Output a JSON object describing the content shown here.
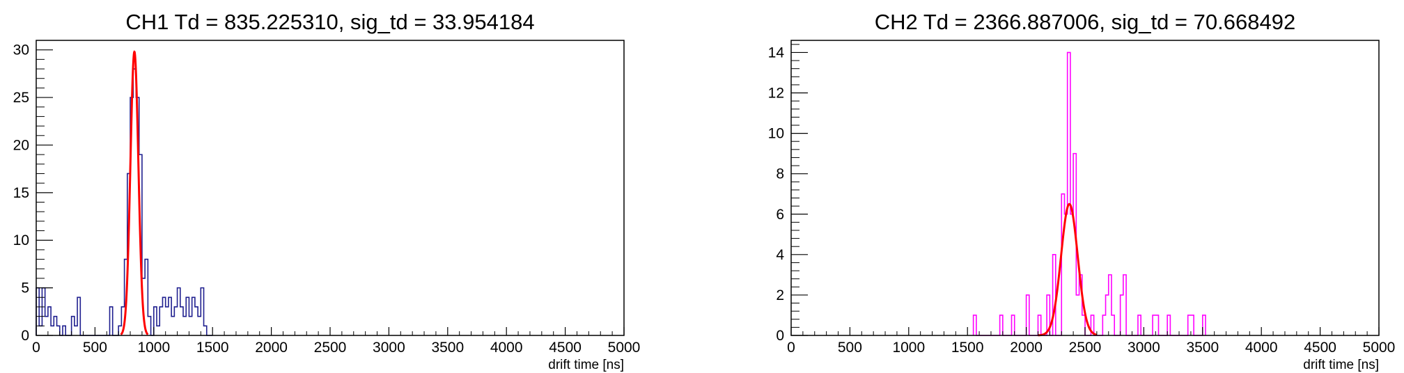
{
  "chart_data": [
    {
      "type": "histogram",
      "title": "CH1 Td = 835.225310, sig_td = 33.954184",
      "xlabel": "drift time [ns]",
      "ylabel": "",
      "xlim": [
        0,
        5000
      ],
      "ylim": [
        0,
        31
      ],
      "bin_width": 25,
      "x_ticks": [
        0,
        500,
        1000,
        1500,
        2000,
        2500,
        3000,
        3500,
        4000,
        4500,
        5000
      ],
      "y_ticks": [
        0,
        5,
        10,
        15,
        20,
        25,
        30
      ],
      "histogram_color": "#1f1f8f",
      "bins": [
        {
          "x": 0,
          "y": 5
        },
        {
          "x": 25,
          "y": 1
        },
        {
          "x": 50,
          "y": 5
        },
        {
          "x": 75,
          "y": 2
        },
        {
          "x": 100,
          "y": 3
        },
        {
          "x": 125,
          "y": 1
        },
        {
          "x": 150,
          "y": 2
        },
        {
          "x": 175,
          "y": 1
        },
        {
          "x": 200,
          "y": 0
        },
        {
          "x": 225,
          "y": 1
        },
        {
          "x": 250,
          "y": 0
        },
        {
          "x": 275,
          "y": 0
        },
        {
          "x": 300,
          "y": 2
        },
        {
          "x": 325,
          "y": 1
        },
        {
          "x": 350,
          "y": 4
        },
        {
          "x": 375,
          "y": 0
        },
        {
          "x": 400,
          "y": 0
        },
        {
          "x": 425,
          "y": 0
        },
        {
          "x": 450,
          "y": 0
        },
        {
          "x": 475,
          "y": 0
        },
        {
          "x": 500,
          "y": 0
        },
        {
          "x": 525,
          "y": 0
        },
        {
          "x": 550,
          "y": 0
        },
        {
          "x": 575,
          "y": 0
        },
        {
          "x": 600,
          "y": 0
        },
        {
          "x": 625,
          "y": 3
        },
        {
          "x": 650,
          "y": 0
        },
        {
          "x": 675,
          "y": 0
        },
        {
          "x": 700,
          "y": 1
        },
        {
          "x": 725,
          "y": 3
        },
        {
          "x": 750,
          "y": 8
        },
        {
          "x": 775,
          "y": 17
        },
        {
          "x": 800,
          "y": 25
        },
        {
          "x": 825,
          "y": 28
        },
        {
          "x": 850,
          "y": 25
        },
        {
          "x": 875,
          "y": 19
        },
        {
          "x": 900,
          "y": 6
        },
        {
          "x": 925,
          "y": 8
        },
        {
          "x": 950,
          "y": 2
        },
        {
          "x": 975,
          "y": 0
        },
        {
          "x": 1000,
          "y": 3
        },
        {
          "x": 1025,
          "y": 1
        },
        {
          "x": 1050,
          "y": 3
        },
        {
          "x": 1075,
          "y": 4
        },
        {
          "x": 1100,
          "y": 3
        },
        {
          "x": 1125,
          "y": 4
        },
        {
          "x": 1150,
          "y": 2
        },
        {
          "x": 1175,
          "y": 3
        },
        {
          "x": 1200,
          "y": 5
        },
        {
          "x": 1225,
          "y": 3
        },
        {
          "x": 1250,
          "y": 2
        },
        {
          "x": 1275,
          "y": 4
        },
        {
          "x": 1300,
          "y": 2
        },
        {
          "x": 1325,
          "y": 4
        },
        {
          "x": 1350,
          "y": 3
        },
        {
          "x": 1375,
          "y": 2
        },
        {
          "x": 1400,
          "y": 5
        },
        {
          "x": 1425,
          "y": 1
        },
        {
          "x": 1450,
          "y": 0
        },
        {
          "x": 1475,
          "y": 0
        }
      ],
      "fit": {
        "type": "gaussian",
        "mean": 835.22531,
        "sigma": 33.954184,
        "amplitude": 29.8,
        "color": "#ff0000",
        "x_range": [
          720,
          950
        ]
      }
    },
    {
      "type": "histogram",
      "title": "CH2 Td = 2366.887006, sig_td = 70.668492",
      "xlabel": "drift time [ns]",
      "ylabel": "",
      "xlim": [
        0,
        5000
      ],
      "ylim": [
        0,
        14.6
      ],
      "bin_width": 25,
      "x_ticks": [
        0,
        500,
        1000,
        1500,
        2000,
        2500,
        3000,
        3500,
        4000,
        4500,
        5000
      ],
      "y_ticks": [
        0,
        2,
        4,
        6,
        8,
        10,
        12,
        14
      ],
      "histogram_color": "#ff00ff",
      "bins": [
        {
          "x": 1550,
          "y": 1
        },
        {
          "x": 1775,
          "y": 1
        },
        {
          "x": 1875,
          "y": 1
        },
        {
          "x": 2000,
          "y": 2
        },
        {
          "x": 2100,
          "y": 1
        },
        {
          "x": 2175,
          "y": 2
        },
        {
          "x": 2225,
          "y": 4
        },
        {
          "x": 2300,
          "y": 7
        },
        {
          "x": 2325,
          "y": 6
        },
        {
          "x": 2350,
          "y": 14
        },
        {
          "x": 2375,
          "y": 6
        },
        {
          "x": 2400,
          "y": 9
        },
        {
          "x": 2425,
          "y": 2
        },
        {
          "x": 2450,
          "y": 3
        },
        {
          "x": 2475,
          "y": 1
        },
        {
          "x": 2550,
          "y": 1
        },
        {
          "x": 2650,
          "y": 1
        },
        {
          "x": 2675,
          "y": 2
        },
        {
          "x": 2700,
          "y": 3
        },
        {
          "x": 2725,
          "y": 1
        },
        {
          "x": 2800,
          "y": 2
        },
        {
          "x": 2825,
          "y": 3
        },
        {
          "x": 2950,
          "y": 1
        },
        {
          "x": 3075,
          "y": 1
        },
        {
          "x": 3100,
          "y": 1
        },
        {
          "x": 3200,
          "y": 1
        },
        {
          "x": 3375,
          "y": 1
        },
        {
          "x": 3400,
          "y": 1
        },
        {
          "x": 3500,
          "y": 1
        }
      ],
      "fit": {
        "type": "gaussian",
        "mean": 2366.887006,
        "sigma": 70.668492,
        "amplitude": 6.5,
        "color": "#ff0000",
        "x_range": [
          2100,
          2600
        ]
      }
    }
  ]
}
